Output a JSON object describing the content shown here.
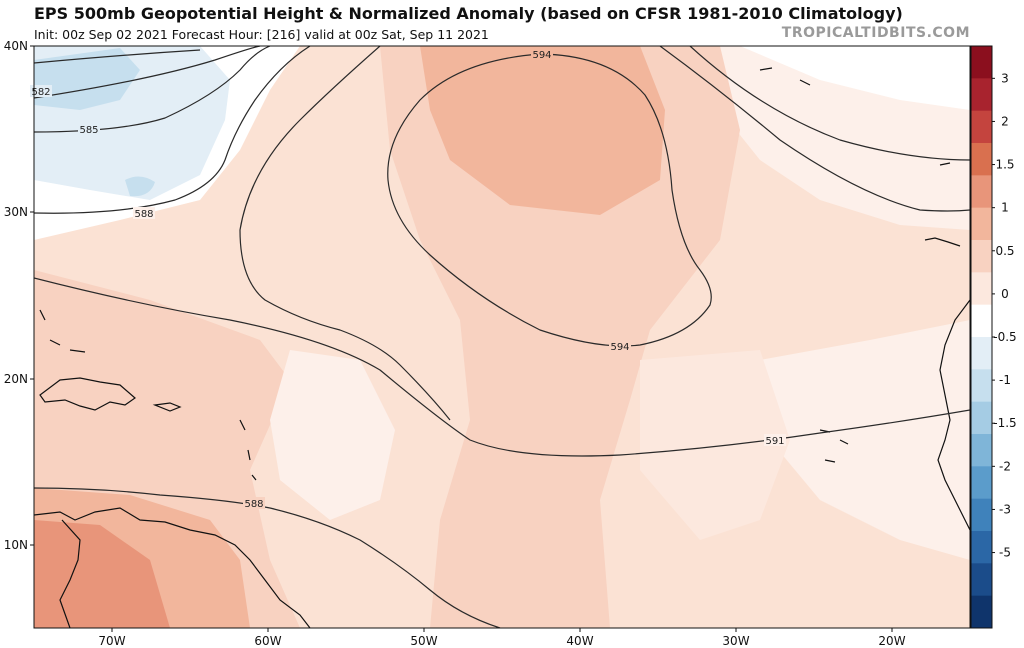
{
  "header": {
    "title": "EPS 500mb Geopotential Height & Normalized Anomaly (based on CFSR 1981-2010 Climatology)",
    "subtitle": "Init: 00z Sep 02 2021   Forecast Hour: [216]   valid at 00z Sat, Sep 11 2021",
    "brand": "TROPICALTIDBITS.COM"
  },
  "map": {
    "lat_labels": [
      "40N",
      "30N",
      "20N",
      "10N"
    ],
    "lon_labels": [
      "70W",
      "60W",
      "50W",
      "40W",
      "30W",
      "20W"
    ],
    "contour_labels": {
      "c582": "582",
      "c585": "585",
      "c588_north": "588",
      "c594_top": "594",
      "c594_bottom": "594",
      "c591": "591",
      "c588_south": "588"
    }
  },
  "colorbar": {
    "ticks": [
      "3",
      "2",
      "1.5",
      "1",
      "0.5",
      "0",
      "-0.5",
      "-1",
      "-1.5",
      "-2",
      "-3",
      "-5"
    ],
    "colors": [
      "#8b0f1e",
      "#a8232e",
      "#c4443e",
      "#d9704f",
      "#e8957a",
      "#f2b69c",
      "#f8d2c1",
      "#fce8de",
      "#ffffff",
      "#e3eef6",
      "#c6dfee",
      "#a5cce4",
      "#7fb5d8",
      "#5b9ccb",
      "#3f82bb",
      "#2b67a6",
      "#1b4c8a",
      "#0f346b"
    ]
  }
}
